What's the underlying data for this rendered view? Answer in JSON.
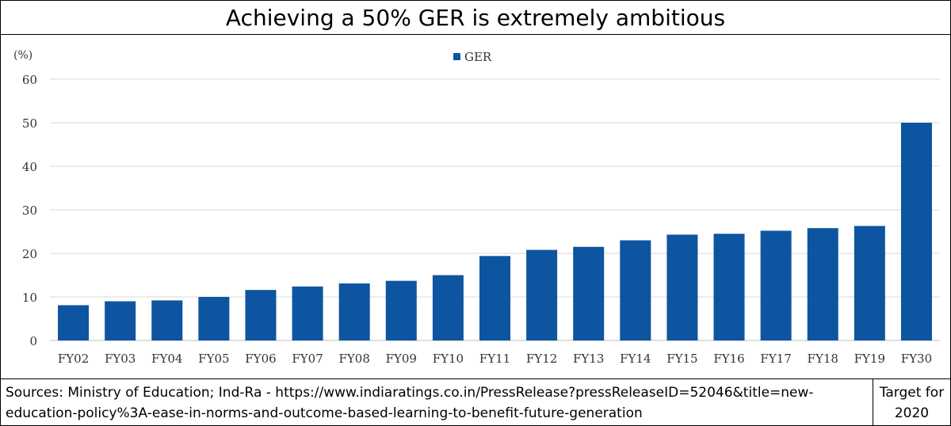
{
  "title": "Achieving a 50% GER is extremely ambitious",
  "colors": {
    "bar": "#0D55A0",
    "grid": "#D9D9D9",
    "axis_text": "#333333"
  },
  "chart_data": {
    "type": "bar",
    "categories": [
      "FY02",
      "FY03",
      "FY04",
      "FY05",
      "FY06",
      "FY07",
      "FY08",
      "FY09",
      "FY10",
      "FY11",
      "FY12",
      "FY13",
      "FY14",
      "FY15",
      "FY16",
      "FY17",
      "FY18",
      "FY19",
      "FY30"
    ],
    "series": [
      {
        "name": "GER",
        "values": [
          8.1,
          9.0,
          9.2,
          10.0,
          11.6,
          12.4,
          13.1,
          13.7,
          15.0,
          19.4,
          20.8,
          21.5,
          23.0,
          24.3,
          24.5,
          25.2,
          25.8,
          26.3,
          50.0
        ]
      }
    ],
    "ylabel": "(%)",
    "ylim": [
      0,
      60
    ],
    "yticks": [
      0,
      10,
      20,
      30,
      40,
      50,
      60
    ],
    "grid": true,
    "legend": "top-center"
  },
  "footer": {
    "source_line1": "Sources: Ministry of Education; Ind-Ra - https://www.indiaratings.co.in/PressRelease?pressReleaseID=52046&title=new-",
    "source_line2": "education-policy%3A-ease-in-norms-and-outcome-based-learning-to-benefit-future-generation",
    "target_line1": "Target for",
    "target_line2": "2020"
  }
}
